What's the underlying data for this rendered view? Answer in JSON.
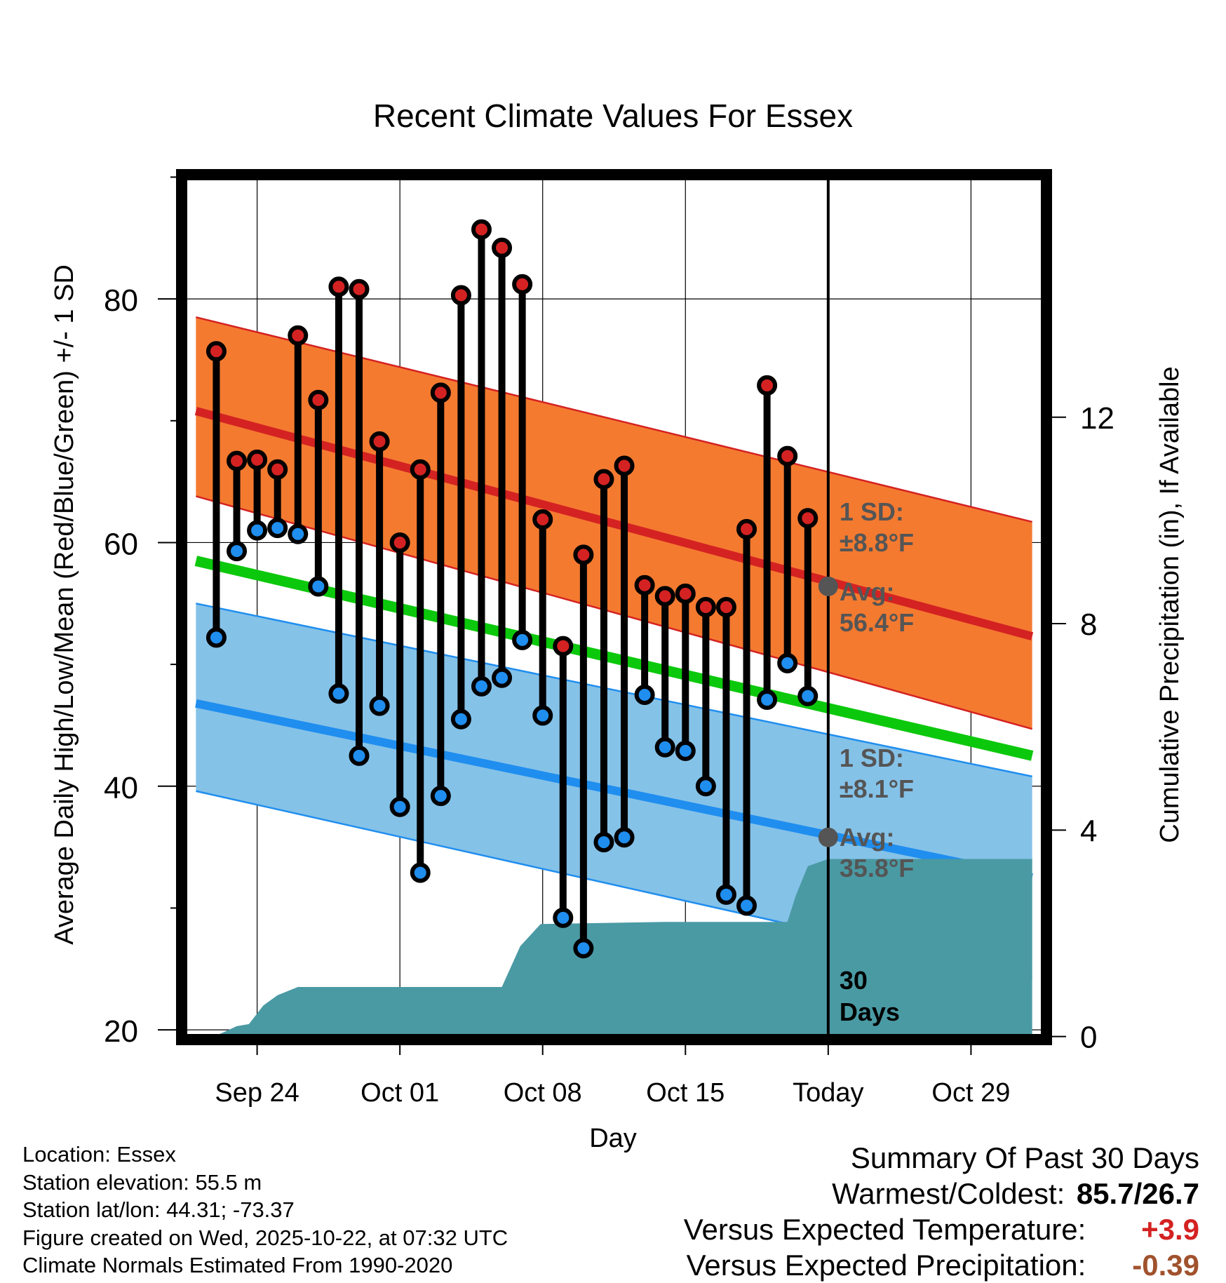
{
  "chart_data": {
    "type": "line",
    "title": "Recent Climate Values For Essex",
    "xlabel": "Day",
    "ylabel_left": "Average Daily High/Low/Mean (Red/Blue/Green) +/- 1 SD",
    "ylabel_right": "Cumulative Precipitation (in), If Available",
    "x_tick_labels": [
      "Sep 24",
      "Oct 01",
      "Oct 08",
      "Oct 15",
      "Today",
      "Oct 29"
    ],
    "x_tick_days": [
      3,
      10,
      17,
      24,
      31,
      38
    ],
    "x_range": [
      -0.7,
      41.7
    ],
    "y_left_ticks": [
      20,
      40,
      60,
      80
    ],
    "y_left_range": [
      19.2,
      90.2
    ],
    "y_right_ticks": [
      0,
      4,
      8,
      12
    ],
    "y_right_range": [
      -0.06,
      16.7
    ],
    "today_day": 31,
    "normals": {
      "high_mean": [
        70.8,
        52.3
      ],
      "high_upper": [
        78.5,
        61.7
      ],
      "high_lower": [
        63.8,
        44.7
      ],
      "high_sd_label": "1 SD:",
      "high_sd_value": "±8.8°F",
      "high_avg_label": "Avg:",
      "high_avg_value": "56.4°F",
      "high_avg_today": 56.4,
      "low_mean": [
        46.8,
        32.5
      ],
      "low_upper": [
        55.0,
        40.8
      ],
      "low_lower": [
        39.6,
        24.2
      ],
      "low_sd_label": "1 SD:",
      "low_sd_value": "±8.1°F",
      "low_avg_label": "Avg:",
      "low_avg_value": "35.8°F",
      "low_avg_today": 35.8,
      "mean_line": [
        58.5,
        42.5
      ]
    },
    "series": [
      {
        "name": "Daily High",
        "color": "#d42222",
        "values": [
          75.7,
          66.7,
          66.8,
          66.0,
          77.0,
          71.7,
          81.0,
          80.8,
          68.3,
          60.0,
          66.0,
          72.3,
          80.3,
          85.7,
          84.2,
          81.2,
          61.9,
          51.5,
          59.0,
          65.2,
          66.3,
          56.5,
          55.6,
          55.8,
          54.7,
          54.7,
          61.1,
          72.9,
          67.1,
          62.0
        ]
      },
      {
        "name": "Daily Low",
        "color": "#1f8eef",
        "values": [
          52.2,
          59.3,
          61.0,
          61.2,
          60.7,
          56.4,
          47.6,
          42.5,
          46.6,
          38.3,
          32.9,
          39.2,
          45.5,
          48.2,
          48.9,
          52.0,
          45.8,
          29.2,
          26.7,
          35.4,
          35.8,
          47.5,
          43.2,
          42.9,
          40.0,
          31.1,
          30.2,
          47.1,
          50.1,
          47.4
        ]
      },
      {
        "name": "Cumulative Precipitation",
        "color": "#4a9aa4",
        "days": [
          0,
          0.9,
          2.0,
          2.6,
          3.3,
          4.0,
          5.0,
          15.0,
          15.9,
          16.9,
          23.0,
          29.0,
          29.4,
          30.0,
          31.0,
          41.0
        ],
        "values": [
          0.0,
          0.0,
          0.2,
          0.24,
          0.6,
          0.8,
          0.96,
          0.96,
          1.75,
          2.18,
          2.22,
          2.22,
          2.72,
          3.3,
          3.44,
          3.44
        ]
      }
    ],
    "precip_period_label": "30 Days"
  },
  "info": {
    "location": "Location: Essex",
    "elevation": "Station elevation: 55.5 m",
    "latlon": "Station lat/lon: 44.31; -73.37",
    "created": "Figure created on Wed, 2025-10-22, at 07:32 UTC",
    "normals": "Climate Normals Estimated From 1990-2020"
  },
  "summary": {
    "title": "Summary Of Past 30 Days",
    "warm_cold_label": "Warmest/Coldest:",
    "warm_cold_value": "85.7/26.7",
    "temp_label": "Versus Expected Temperature:",
    "temp_value": "+3.9",
    "temp_color": "#d42222",
    "precip_label": "Versus Expected Precipitation:",
    "precip_value": "-0.39",
    "precip_color": "#a0522d"
  }
}
